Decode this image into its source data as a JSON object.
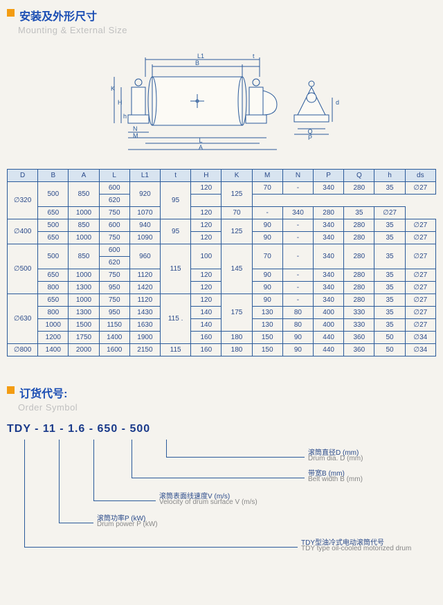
{
  "section1": {
    "title_cn": "安装及外形尺寸",
    "title_en": "Mounting & External Size"
  },
  "section2": {
    "title_cn": "订货代号:",
    "title_en": "Order Symbol"
  },
  "diagram_labels": {
    "L1": "L1",
    "B": "B",
    "t": "t",
    "K": "K",
    "H": "H",
    "h": "h",
    "N": "N",
    "M": "M",
    "L": "L",
    "A": "A",
    "ds": "ds",
    "Q": "Q",
    "P": "P"
  },
  "table": {
    "headers": [
      "D",
      "B",
      "A",
      "L",
      "L1",
      "t",
      "H",
      "K",
      "M",
      "N",
      "P",
      "Q",
      "h",
      "ds"
    ],
    "groups": [
      {
        "D": "∅320",
        "rows": [
          {
            "B": "500",
            "A": "850",
            "L": "600",
            "L1": "920",
            "t": "95",
            "H": "120",
            "K": "125",
            "M": "70",
            "N": "-",
            "P": "340",
            "Q": "280",
            "h": "35",
            "ds": "∅27",
            "L_span": 1,
            "L1_span": 2,
            "t_span": 3,
            "K_span": 2,
            "merge_BA": 2
          },
          {
            "L": "620"
          },
          {
            "B": "650",
            "A": "1000",
            "L": "750",
            "L1": "1070",
            "H": "120",
            "M": "70",
            "N": "-",
            "P": "340",
            "Q": "280",
            "h": "35",
            "ds": "∅27"
          }
        ]
      },
      {
        "D": "∅400",
        "rows": [
          {
            "B": "500",
            "A": "850",
            "L": "600",
            "L1": "940",
            "t": "95",
            "H": "120",
            "K": "125",
            "M": "90",
            "N": "-",
            "P": "340",
            "Q": "280",
            "h": "35",
            "ds": "∅27",
            "t_span": 2,
            "K_span": 2
          },
          {
            "B": "650",
            "A": "1000",
            "L": "750",
            "L1": "1090",
            "H": "120",
            "M": "90",
            "N": "-",
            "P": "340",
            "Q": "280",
            "h": "35",
            "ds": "∅27"
          }
        ]
      },
      {
        "D": "∅500",
        "rows": [
          {
            "B": "500",
            "A": "850",
            "L": "600",
            "L1": "960",
            "t": "115",
            "H": "100",
            "K": "145",
            "M": "70",
            "N": "-",
            "P": "340",
            "Q": "280",
            "h": "35",
            "ds": "∅27",
            "L1_span": 2,
            "t_span": 4,
            "K_span": 4,
            "H_span": 2,
            "merge_BA": 2,
            "merge_rest": 2
          },
          {
            "L": "620"
          },
          {
            "B": "650",
            "A": "1000",
            "L": "750",
            "L1": "1120",
            "H": "120",
            "M": "90",
            "N": "-",
            "P": "340",
            "Q": "280",
            "h": "35",
            "ds": "∅27"
          },
          {
            "B": "800",
            "A": "1300",
            "L": "950",
            "L1": "1420",
            "H": "120",
            "M": "90",
            "N": "-",
            "P": "340",
            "Q": "280",
            "h": "35",
            "ds": "∅27"
          }
        ]
      },
      {
        "D": "∅630",
        "rows": [
          {
            "B": "650",
            "A": "1000",
            "L": "750",
            "L1": "1120",
            "t": "115",
            "H": "120",
            "K": "175",
            "M": "90",
            "N": "-",
            "P": "340",
            "Q": "280",
            "h": "35",
            "ds": "∅27",
            "t_span": 4,
            "K_span": 4
          },
          {
            "B": "800",
            "A": "1300",
            "L": "950",
            "L1": "1430",
            "H": "140",
            "M": "130",
            "N": "80",
            "P": "400",
            "Q": "330",
            "h": "35",
            "ds": "∅27"
          },
          {
            "B": "1000",
            "A": "1500",
            "L": "1150",
            "L1": "1630",
            "H": "140",
            "M": "130",
            "N": "80",
            "P": "400",
            "Q": "330",
            "h": "35",
            "ds": "∅27"
          },
          {
            "B": "1200",
            "A": "1750",
            "L": "1400",
            "L1": "1900",
            "H": "160",
            "K": "180",
            "M": "150",
            "N": "90",
            "P": "440",
            "Q": "360",
            "h": "50",
            "ds": "∅34"
          }
        ]
      },
      {
        "D": "∅800",
        "rows": [
          {
            "B": "1400",
            "A": "2000",
            "L": "1600",
            "L1": "2150",
            "t": "115",
            "H": "160",
            "K": "180",
            "M": "150",
            "N": "90",
            "P": "440",
            "Q": "360",
            "h": "50",
            "ds": "∅34"
          }
        ]
      }
    ]
  },
  "order": {
    "code": "TDY - 11 - 1.6 - 650 - 500",
    "parts": [
      {
        "cn": "滚筒直径D (mm)",
        "en": "Drum dia. D (mm)"
      },
      {
        "cn": "带宽B (mm)",
        "en": "Belt width B (mm)"
      },
      {
        "cn": "滚筒表面线速度V (m/s)",
        "en": "Velocity of drum surface V (m/s)"
      },
      {
        "cn": "滚筒功率P (kW)",
        "en": "Drum power P (kW)"
      },
      {
        "cn": "TDY型油冷式电动滚筒代号",
        "en": "TDY type oil-cooled motorized drum"
      }
    ]
  }
}
